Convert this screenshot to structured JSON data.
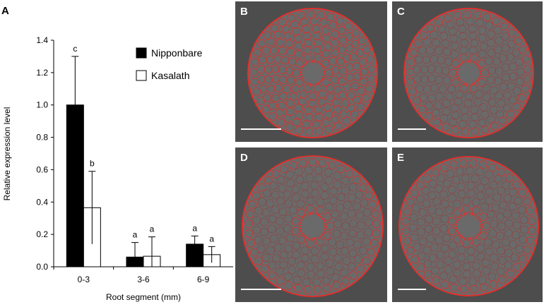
{
  "chart_data": {
    "type": "bar",
    "panel": "A",
    "ylabel": "Relative expression level",
    "xlabel": "Root segment (mm)",
    "categories": [
      "0-3",
      "3-6",
      "6-9"
    ],
    "series": [
      {
        "name": "Nipponbare",
        "color": "#000000",
        "values": [
          1.0,
          0.06,
          0.14
        ],
        "errors": [
          0.3,
          0.09,
          0.05
        ],
        "letters": [
          "c",
          "a",
          "a"
        ]
      },
      {
        "name": "Kasalath",
        "color": "#ffffff",
        "values": [
          0.365,
          0.065,
          0.075
        ],
        "errors": [
          0.225,
          0.12,
          0.05
        ],
        "letters": [
          "b",
          "a",
          "a"
        ]
      }
    ],
    "ylim": [
      0,
      1.4
    ],
    "yticks": [
      {
        "value": 0,
        "label": "0.0"
      },
      0.2,
      0.4,
      0.6,
      0.8,
      {
        "value": 1,
        "label": "1.0"
      },
      1.2,
      1.4
    ]
  },
  "images": [
    {
      "label": "B"
    },
    {
      "label": "C"
    },
    {
      "label": "D"
    },
    {
      "label": "E"
    }
  ]
}
